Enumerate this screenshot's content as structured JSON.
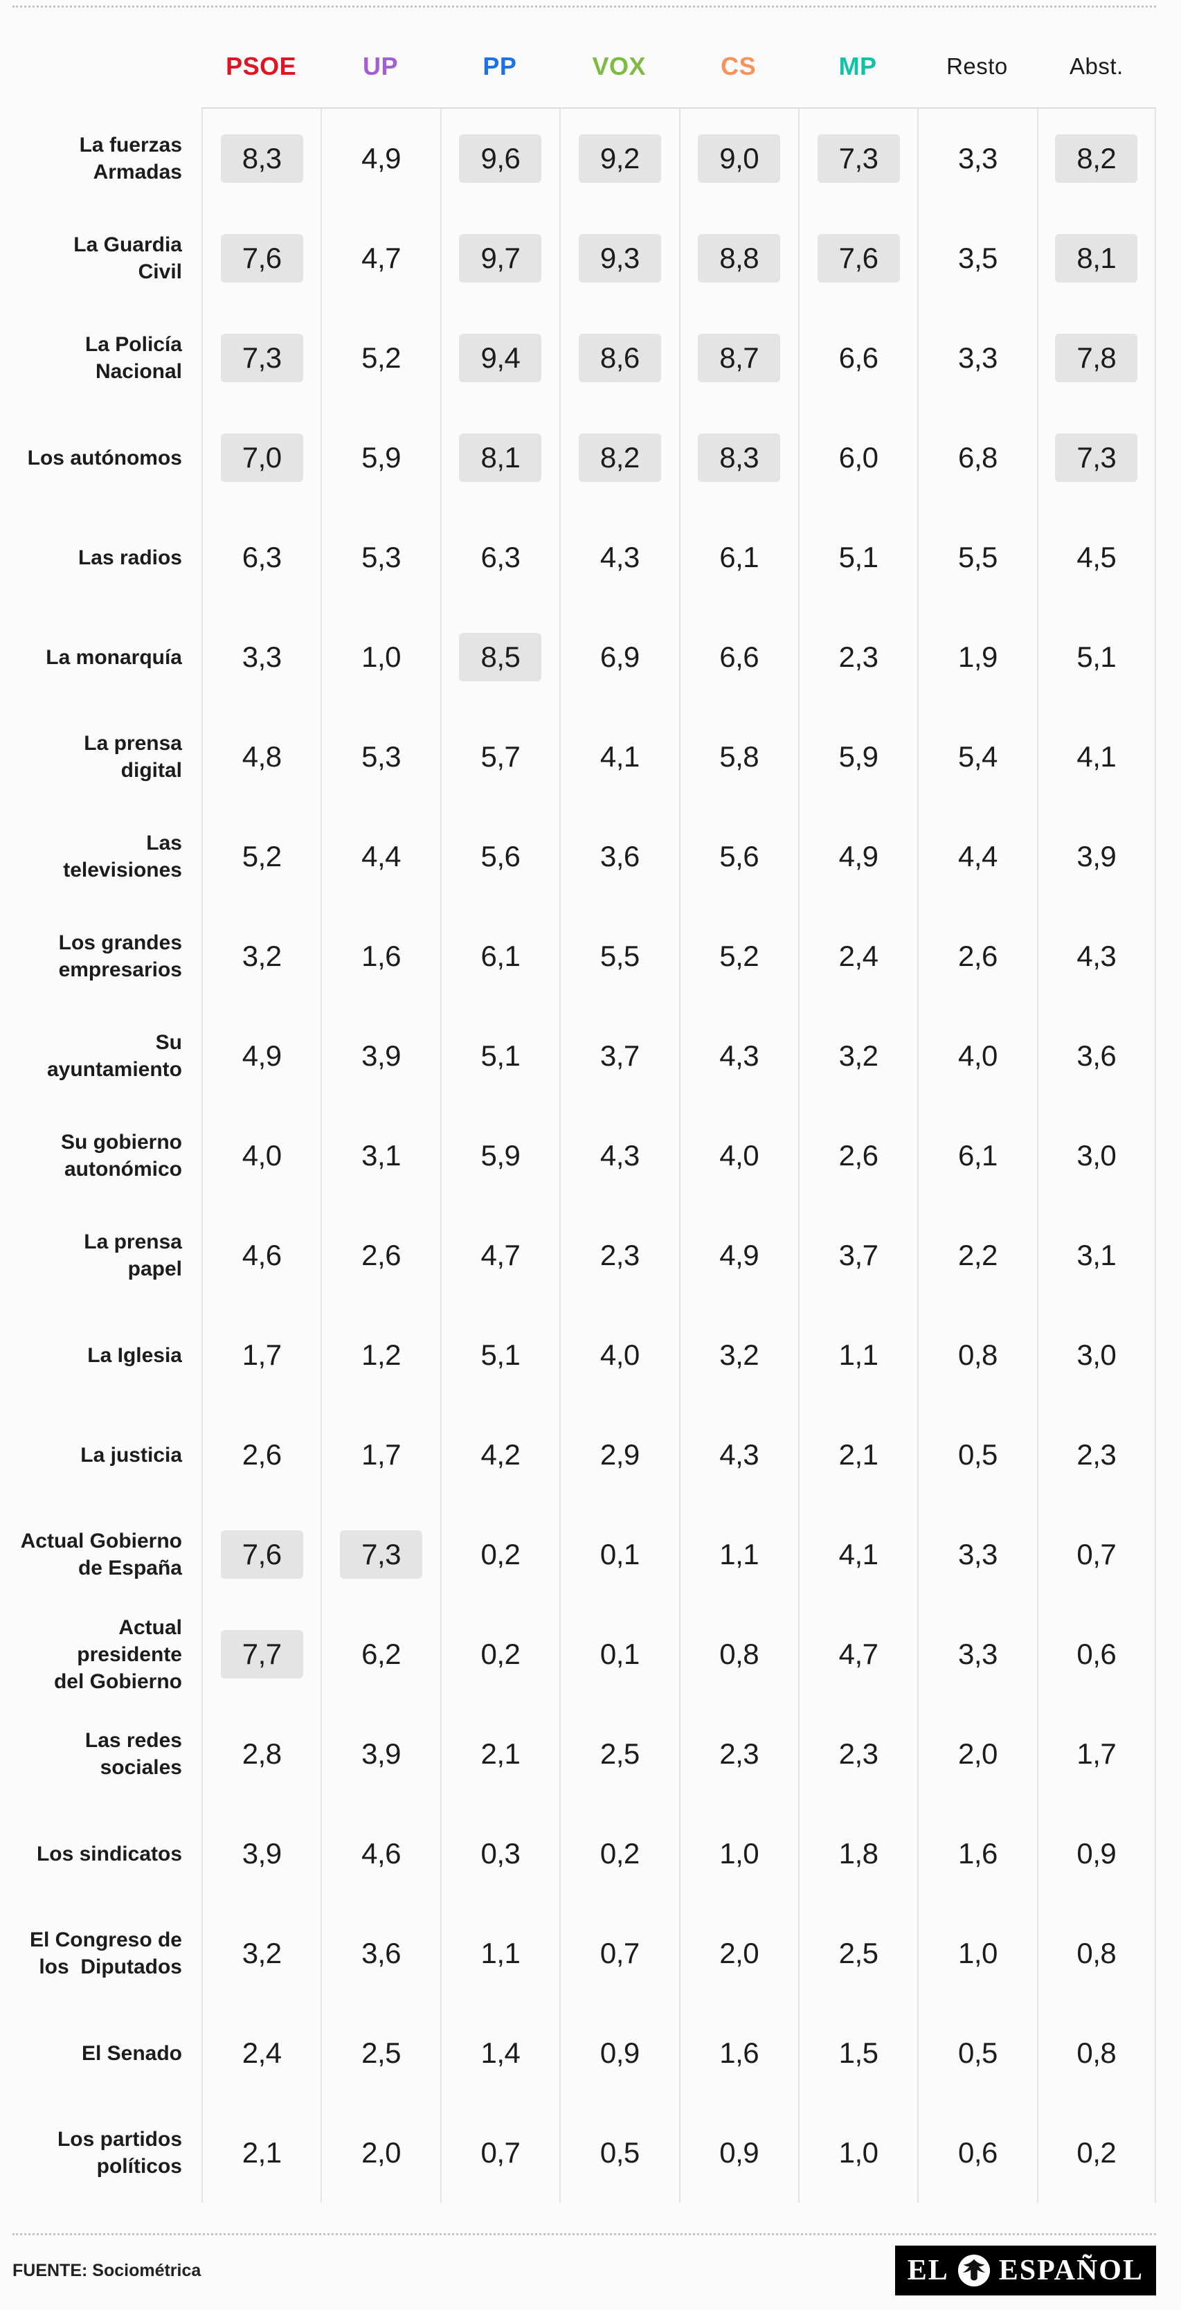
{
  "page": {
    "background": "#fbfbfb",
    "text_color": "#1c1c1c"
  },
  "table": {
    "columns": [
      {
        "key": "psoe",
        "label": "PSOE",
        "color": "#e01523",
        "bold": true
      },
      {
        "key": "up",
        "label": "UP",
        "color": "#a25fd1",
        "bold": true
      },
      {
        "key": "pp",
        "label": "PP",
        "color": "#1f72e4",
        "bold": true
      },
      {
        "key": "vox",
        "label": "VOX",
        "color": "#7fba45",
        "bold": true
      },
      {
        "key": "cs",
        "label": "CS",
        "color": "#f6935c",
        "bold": true
      },
      {
        "key": "mp",
        "label": "MP",
        "color": "#10c3a6",
        "bold": true
      },
      {
        "key": "resto",
        "label": "Resto",
        "color": "#1c1c1c",
        "bold": false
      },
      {
        "key": "abst",
        "label": "Abst.",
        "color": "#1c1c1c",
        "bold": false
      }
    ],
    "row_labels": [
      "La fuerzas\nArmadas",
      "La Guardia\nCivil",
      "La Policía\nNacional",
      "Los autónomos",
      "Las radios",
      "La monarquía",
      "La prensa\ndigital",
      "Las\ntelevisiones",
      "Los grandes\nempresarios",
      "Su\nayuntamiento",
      "Su gobierno\nautonómico",
      "La prensa\npapel",
      "La Iglesia",
      "La justicia",
      "Actual Gobierno\nde España",
      "Actual presidente\ndel Gobierno",
      "Las redes\nsociales",
      "Los sindicatos",
      "El Congreso de\nlos  Diputados",
      "El Senado",
      "Los partidos\npolíticos"
    ],
    "highlight_threshold": 7,
    "highlight_bg": "#e4e4e4"
  },
  "footer": {
    "source": "FUENTE: Sociométrica",
    "logo_el": "EL",
    "logo_espanol": "ESPAÑOL"
  },
  "chart_data": {
    "type": "table",
    "title": "",
    "columns": [
      "PSOE",
      "UP",
      "PP",
      "VOX",
      "CS",
      "MP",
      "Resto",
      "Abst."
    ],
    "rows": [
      {
        "label": "La fuerzas Armadas",
        "values": [
          8.3,
          4.9,
          9.6,
          9.2,
          9.0,
          7.3,
          3.3,
          8.2
        ]
      },
      {
        "label": "La Guardia Civil",
        "values": [
          7.6,
          4.7,
          9.7,
          9.3,
          8.8,
          7.6,
          3.5,
          8.1
        ]
      },
      {
        "label": "La Policía Nacional",
        "values": [
          7.3,
          5.2,
          9.4,
          8.6,
          8.7,
          6.6,
          3.3,
          7.8
        ]
      },
      {
        "label": "Los autónomos",
        "values": [
          7.0,
          5.9,
          8.1,
          8.2,
          8.3,
          6.0,
          6.8,
          7.3
        ]
      },
      {
        "label": "Las radios",
        "values": [
          6.3,
          5.3,
          6.3,
          4.3,
          6.1,
          5.1,
          5.5,
          4.5
        ]
      },
      {
        "label": "La monarquía",
        "values": [
          3.3,
          1.0,
          8.5,
          6.9,
          6.6,
          2.3,
          1.9,
          5.1
        ]
      },
      {
        "label": "La prensa digital",
        "values": [
          4.8,
          5.3,
          5.7,
          4.1,
          5.8,
          5.9,
          5.4,
          4.1
        ]
      },
      {
        "label": "Las televisiones",
        "values": [
          5.2,
          4.4,
          5.6,
          3.6,
          5.6,
          4.9,
          4.4,
          3.9
        ]
      },
      {
        "label": "Los grandes empresarios",
        "values": [
          3.2,
          1.6,
          6.1,
          5.5,
          5.2,
          2.4,
          2.6,
          4.3
        ]
      },
      {
        "label": "Su ayuntamiento",
        "values": [
          4.9,
          3.9,
          5.1,
          3.7,
          4.3,
          3.2,
          4.0,
          3.6
        ]
      },
      {
        "label": "Su gobierno autonómico",
        "values": [
          4.0,
          3.1,
          5.9,
          4.3,
          4.0,
          2.6,
          6.1,
          3.0
        ]
      },
      {
        "label": "La prensa papel",
        "values": [
          4.6,
          2.6,
          4.7,
          2.3,
          4.9,
          3.7,
          2.2,
          3.1
        ]
      },
      {
        "label": "La Iglesia",
        "values": [
          1.7,
          1.2,
          5.1,
          4.0,
          3.2,
          1.1,
          0.8,
          3.0
        ]
      },
      {
        "label": "La justicia",
        "values": [
          2.6,
          1.7,
          4.2,
          2.9,
          4.3,
          2.1,
          0.5,
          2.3
        ]
      },
      {
        "label": "Actual Gobierno de España",
        "values": [
          7.6,
          7.3,
          0.2,
          0.1,
          1.1,
          4.1,
          3.3,
          0.7
        ]
      },
      {
        "label": "Actual presidente del Gobierno",
        "values": [
          7.7,
          6.2,
          0.2,
          0.1,
          0.8,
          4.7,
          3.3,
          0.6
        ]
      },
      {
        "label": "Las redes sociales",
        "values": [
          2.8,
          3.9,
          2.1,
          2.5,
          2.3,
          2.3,
          2.0,
          1.7
        ]
      },
      {
        "label": "Los sindicatos",
        "values": [
          3.9,
          4.6,
          0.3,
          0.2,
          1.0,
          1.8,
          1.6,
          0.9
        ]
      },
      {
        "label": "El Congreso de los Diputados",
        "values": [
          3.2,
          3.6,
          1.1,
          0.7,
          2.0,
          2.5,
          1.0,
          0.8
        ]
      },
      {
        "label": "El Senado",
        "values": [
          2.4,
          2.5,
          1.4,
          0.9,
          1.6,
          1.5,
          0.5,
          0.8
        ]
      },
      {
        "label": "Los partidos políticos",
        "values": [
          2.1,
          2.0,
          0.7,
          0.5,
          0.9,
          1.0,
          0.6,
          0.2
        ]
      }
    ],
    "value_format": "one decimal, comma separator",
    "highlight_rule": "values >= 7.0 shown with gray chip background",
    "grid": "vertical column separators only",
    "legend_position": "none",
    "source": "FUENTE: Sociométrica"
  }
}
